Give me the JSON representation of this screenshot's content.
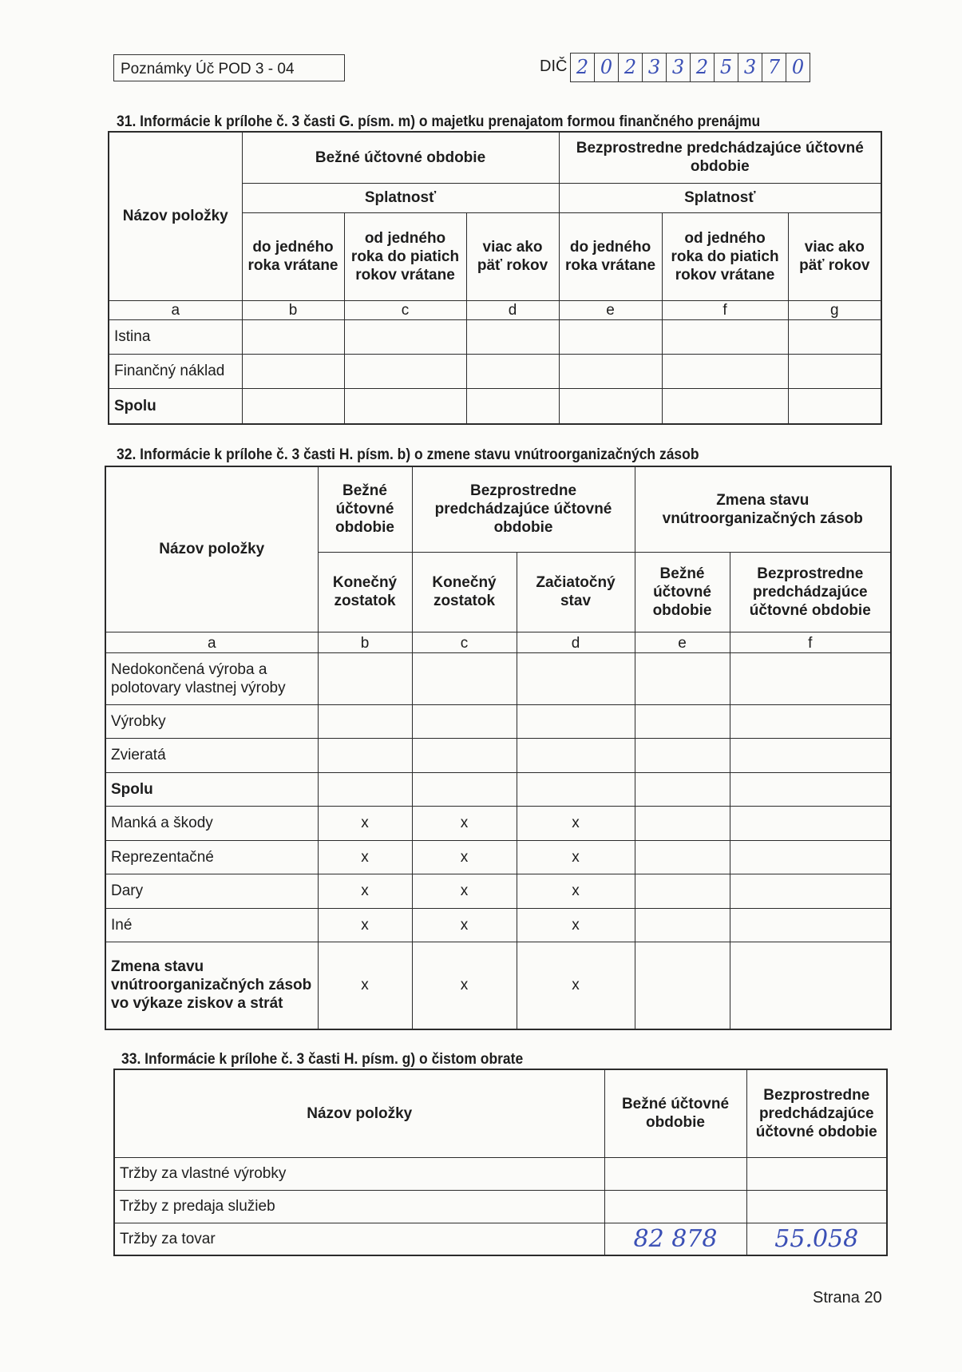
{
  "header": {
    "title": "Poznámky Úč POD 3 - 04",
    "dic_label": "DIČ",
    "dic_digits": [
      "2",
      "0",
      "2",
      "3",
      "3",
      "2",
      "5",
      "3",
      "7",
      "0"
    ]
  },
  "s31": {
    "title": "31.  Informácie k prílohe č. 3 časti G. písm. m) o majetku prenajatom formou finančného prenájmu",
    "name_col": "Názov položky",
    "current": "Bežné účtovné obdobie",
    "previous": "Bezprostredne predchádzajúce účtovné obdobie",
    "maturity": "Splatnosť",
    "cols": [
      "do jedného roka vrátane",
      "od jedného roka do piatich rokov vrátane",
      "viac ako päť rokov",
      "do jedného roka vrátane",
      "od jedného roka do piatich rokov vrátane",
      "viac ako päť rokov"
    ],
    "letters": [
      "a",
      "b",
      "c",
      "d",
      "e",
      "f",
      "g"
    ],
    "rows": [
      "Istina",
      "Finančný náklad",
      "Spolu"
    ]
  },
  "s32": {
    "title": "32.  Informácie k prílohe č. 3 časti H. písm. b) o zmene stavu vnútroorganizačných zásob",
    "name_col": "Názov položky",
    "current": "Bežné účtovné obdobie",
    "previous": "Bezprostredne predchádzajúce účtovné obdobie",
    "change": "Zmena stavu vnútroorganizačných zásob",
    "sub": [
      "Konečný zostatok",
      "Konečný zostatok",
      "Začiatočný stav",
      "Bežné účtovné obdobie",
      "Bezprostredne predchádzajúce účtovné obdobie"
    ],
    "letters": [
      "a",
      "b",
      "c",
      "d",
      "e",
      "f"
    ],
    "rows": [
      {
        "label": "Nedokončená výroba a polotovary vlastnej výroby",
        "bold": false,
        "cells": [
          "",
          "",
          "",
          "",
          ""
        ]
      },
      {
        "label": "Výrobky",
        "bold": false,
        "cells": [
          "",
          "",
          "",
          "",
          ""
        ]
      },
      {
        "label": "Zvieratá",
        "bold": false,
        "cells": [
          "",
          "",
          "",
          "",
          ""
        ]
      },
      {
        "label": "Spolu",
        "bold": true,
        "cells": [
          "",
          "",
          "",
          "",
          ""
        ]
      },
      {
        "label": "Manká a škody",
        "bold": false,
        "cells": [
          "x",
          "x",
          "x",
          "",
          ""
        ]
      },
      {
        "label": "Reprezentačné",
        "bold": false,
        "cells": [
          "x",
          "x",
          "x",
          "",
          ""
        ]
      },
      {
        "label": "Dary",
        "bold": false,
        "cells": [
          "x",
          "x",
          "x",
          "",
          ""
        ]
      },
      {
        "label": "Iné",
        "bold": false,
        "cells": [
          "x",
          "x",
          "x",
          "",
          ""
        ]
      },
      {
        "label": "Zmena stavu vnútroorganizačných zásob vo výkaze ziskov a strát",
        "bold": true,
        "cells": [
          "x",
          "x",
          "x",
          "",
          ""
        ]
      }
    ]
  },
  "s33": {
    "title": "33.  Informácie k prílohe č. 3 časti H. písm. g) o čistom obrate",
    "name_col": "Názov položky",
    "current": "Bežné účtovné obdobie",
    "previous": "Bezprostredne predchádzajúce účtovné obdobie",
    "rows": [
      {
        "label": "Tržby za vlastné výrobky",
        "current": "",
        "previous": ""
      },
      {
        "label": "Tržby z predaja služieb",
        "current": "",
        "previous": ""
      },
      {
        "label": "Tržby za tovar",
        "current": "82 878",
        "previous": "55.058"
      }
    ]
  },
  "footer": {
    "page": "Strana 20"
  }
}
